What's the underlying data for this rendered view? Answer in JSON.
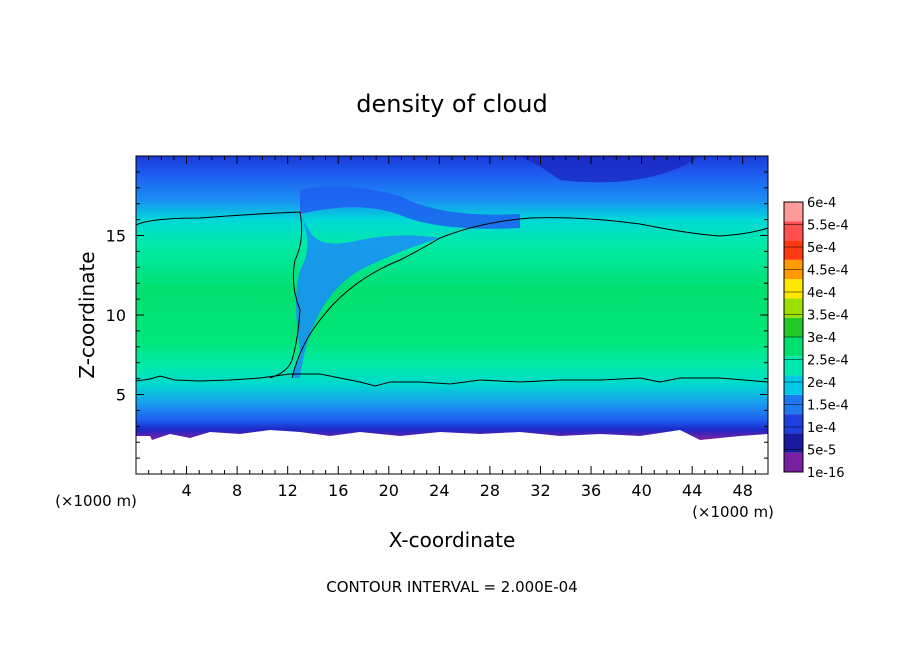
{
  "chart_data": {
    "type": "heatmap",
    "title": "density of cloud",
    "xlabel": "X-coordinate",
    "ylabel": "Z-coordinate",
    "x_unit": "(×1000 m)",
    "y_unit": "(×1000 m)",
    "xlim": [
      0,
      50
    ],
    "ylim": [
      0,
      20
    ],
    "x_ticks": [
      4,
      8,
      12,
      16,
      20,
      24,
      28,
      32,
      36,
      40,
      44,
      48
    ],
    "y_ticks": [
      5,
      10,
      15
    ],
    "footer": "CONTOUR INTERVAL = 2.000E-04",
    "colorbar": {
      "labels": [
        "1e-16",
        "5e-5",
        "1e-4",
        "1.5e-4",
        "2e-4",
        "2.5e-4",
        "3e-4",
        "3.5e-4",
        "4e-4",
        "4.5e-4",
        "5e-4",
        "5.5e-4",
        "6e-4"
      ],
      "colors": [
        "#7a1fa2",
        "#1a1a9e",
        "#1f3fe0",
        "#1e78f0",
        "#00c8e8",
        "#00e8b0",
        "#00e070",
        "#22c828",
        "#9be000",
        "#ffe800",
        "#ff9a00",
        "#ff3a10",
        "#ff5050",
        "#ff9a9a"
      ]
    },
    "contour_levels": [
      0.0002
    ],
    "cloud_base_km": 2.8,
    "lower_contour_z_km": 5.8,
    "upper_contour_z_km": [
      16.0,
      16.4,
      13.5,
      16.0,
      15.0
    ],
    "upper_contour_x_km": [
      2,
      10,
      20,
      32,
      48
    ]
  }
}
